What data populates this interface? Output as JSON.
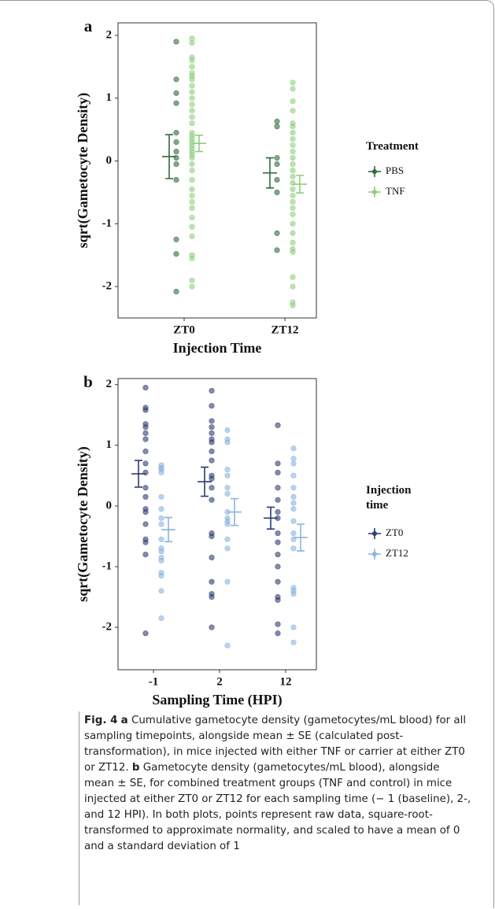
{
  "chart_data": [
    {
      "type": "scatter",
      "panel_label": "a",
      "y_label": "sqrt(Gametocyte Density)",
      "x_label": "Injection Time",
      "categories": [
        "ZT0",
        "ZT12"
      ],
      "ylim": [
        -2.5,
        2.2
      ],
      "yticks": [
        -2,
        -1,
        0,
        1,
        2
      ],
      "legend_title": "Treatment",
      "series": [
        {
          "name": "PBS",
          "color": "#2e6b3a",
          "points": [
            [
              1.9,
              1.3,
              1.08,
              0.92,
              0.45,
              0.3,
              0.15,
              0.05,
              -0.05,
              -0.3,
              -1.25,
              -1.48,
              -2.08
            ],
            [
              0.63,
              0.55,
              0.05,
              -0.05,
              -0.3,
              -0.5,
              -1.15,
              -1.42
            ]
          ],
          "mean": [
            0.07,
            -0.19
          ],
          "se": [
            0.35,
            0.24
          ]
        },
        {
          "name": "TNF",
          "color": "#8fce7f",
          "points": [
            [
              1.95,
              1.88,
              1.65,
              1.6,
              1.5,
              1.4,
              1.35,
              1.3,
              1.2,
              1.1,
              1.0,
              0.9,
              0.8,
              0.7,
              0.6,
              0.45,
              0.4,
              0.35,
              0.3,
              0.25,
              0.2,
              0.15,
              0.1,
              0.05,
              -0.05,
              -0.15,
              -0.3,
              -0.45,
              -0.55,
              -0.65,
              -0.75,
              -0.9,
              -1.05,
              -1.2,
              -1.5,
              -1.55,
              -1.9,
              -2.0
            ],
            [
              1.25,
              1.15,
              0.95,
              0.8,
              0.6,
              0.55,
              0.45,
              0.35,
              0.25,
              0.15,
              0.05,
              -0.05,
              -0.15,
              -0.25,
              -0.35,
              -0.45,
              -0.55,
              -0.65,
              -0.75,
              -0.85,
              -1.0,
              -1.15,
              -1.3,
              -1.4,
              -1.45,
              -1.85,
              -2.0,
              -2.25,
              -2.3
            ]
          ],
          "mean": [
            0.28,
            -0.37
          ],
          "se": [
            0.13,
            0.14
          ]
        }
      ]
    },
    {
      "type": "scatter",
      "panel_label": "b",
      "y_label": "sqrt(Gametocyte Density)",
      "x_label": "Sampling Time (HPI)",
      "categories": [
        "-1",
        "2",
        "12"
      ],
      "ylim": [
        -2.7,
        2.1
      ],
      "yticks": [
        -2,
        -1,
        0,
        1,
        2
      ],
      "legend_title": "Injection time",
      "series": [
        {
          "name": "ZT0",
          "color": "#2f3d73",
          "points": [
            [
              1.95,
              1.62,
              1.58,
              1.35,
              1.3,
              1.2,
              1.1,
              0.9,
              0.7,
              0.55,
              0.3,
              0.15,
              -0.05,
              -0.1,
              -0.3,
              -0.55,
              -0.6,
              -0.8,
              -2.1
            ],
            [
              1.9,
              1.65,
              1.4,
              1.3,
              1.2,
              1.1,
              1.05,
              0.9,
              0.75,
              0.5,
              0.45,
              0.3,
              0.1,
              -0.45,
              -0.5,
              -0.85,
              -1.25,
              -1.45,
              -1.5,
              -2.0
            ],
            [
              1.33,
              0.7,
              0.55,
              0.3,
              0.1,
              -0.1,
              -0.2,
              -0.45,
              -0.6,
              -0.8,
              -1.0,
              -1.25,
              -1.5,
              -1.55,
              -1.95,
              -2.1
            ]
          ],
          "mean": [
            0.53,
            0.4,
            -0.2
          ],
          "se": [
            0.22,
            0.24,
            0.18
          ]
        },
        {
          "name": "ZT12",
          "color": "#8ab4e0",
          "points": [
            [
              0.67,
              0.63,
              0.6,
              0.55,
              0.15,
              -0.05,
              -0.2,
              -0.3,
              -0.55,
              -0.7,
              -0.75,
              -0.85,
              -0.9,
              -1.1,
              -1.15,
              -1.4,
              -1.85
            ],
            [
              1.25,
              1.1,
              1.05,
              0.6,
              0.5,
              0.3,
              0.2,
              -0.1,
              -0.2,
              -0.25,
              -0.3,
              -0.55,
              -0.7,
              -1.25,
              -2.3
            ],
            [
              0.95,
              0.78,
              0.7,
              0.5,
              0.3,
              0.15,
              0.05,
              -0.05,
              -0.25,
              -0.45,
              -0.55,
              -0.7,
              -1.35,
              -1.4,
              -1.45,
              -2.0,
              -2.25
            ]
          ],
          "mean": [
            -0.39,
            -0.1,
            -0.52
          ],
          "se": [
            0.2,
            0.22,
            0.22
          ]
        }
      ]
    }
  ],
  "caption": {
    "segments": [
      {
        "text": "Fig. 4",
        "bold": true
      },
      {
        "text": "a",
        "bold": true
      },
      {
        "text": "Cumulative gametocyte density (gametocytes/mL blood) for all sampling timepoints, alongside mean ± SE (calculated post-transformation), in mice injected with either TNF or carrier at either ZT0 or ZT12.",
        "bold": false
      },
      {
        "text": "b",
        "bold": true
      },
      {
        "text": "Gametocyte density (gametocytes/mL blood), alongside mean ± SE, for combined treatment groups (TNF and control) in mice injected at either ZT0 or ZT12 for each sampling time (− 1 (baseline), 2-, and 12 HPI). In both plots, points represent raw data, square-root-transformed to approximate normality, and scaled to have a mean of 0 and a standard deviation of 1",
        "bold": false
      }
    ]
  }
}
